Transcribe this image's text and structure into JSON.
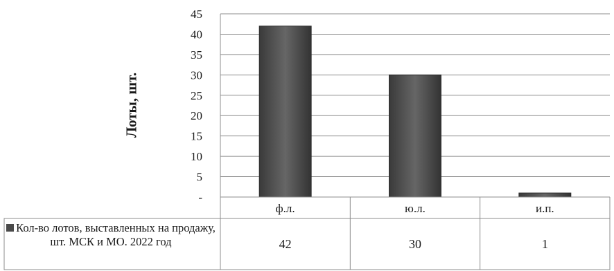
{
  "chart_data": {
    "type": "bar",
    "categories": [
      "ф.л.",
      "ю.л.",
      "и.п."
    ],
    "series": [
      {
        "name": "Кол-во лотов, выставленных на продажу, шт. МСК и МО. 2022 год",
        "values": [
          42,
          30,
          1
        ]
      }
    ],
    "ylabel": "Лоты, шт.",
    "ylim": [
      0,
      45
    ],
    "yticks": [
      0,
      5,
      10,
      15,
      20,
      25,
      30,
      35,
      40,
      45
    ],
    "ytick_labels": [
      "-",
      "5",
      "10",
      "15",
      "20",
      "25",
      "30",
      "35",
      "40",
      "45"
    ],
    "grid": true,
    "data_table": true,
    "bar_color": "#4a4a4a"
  }
}
